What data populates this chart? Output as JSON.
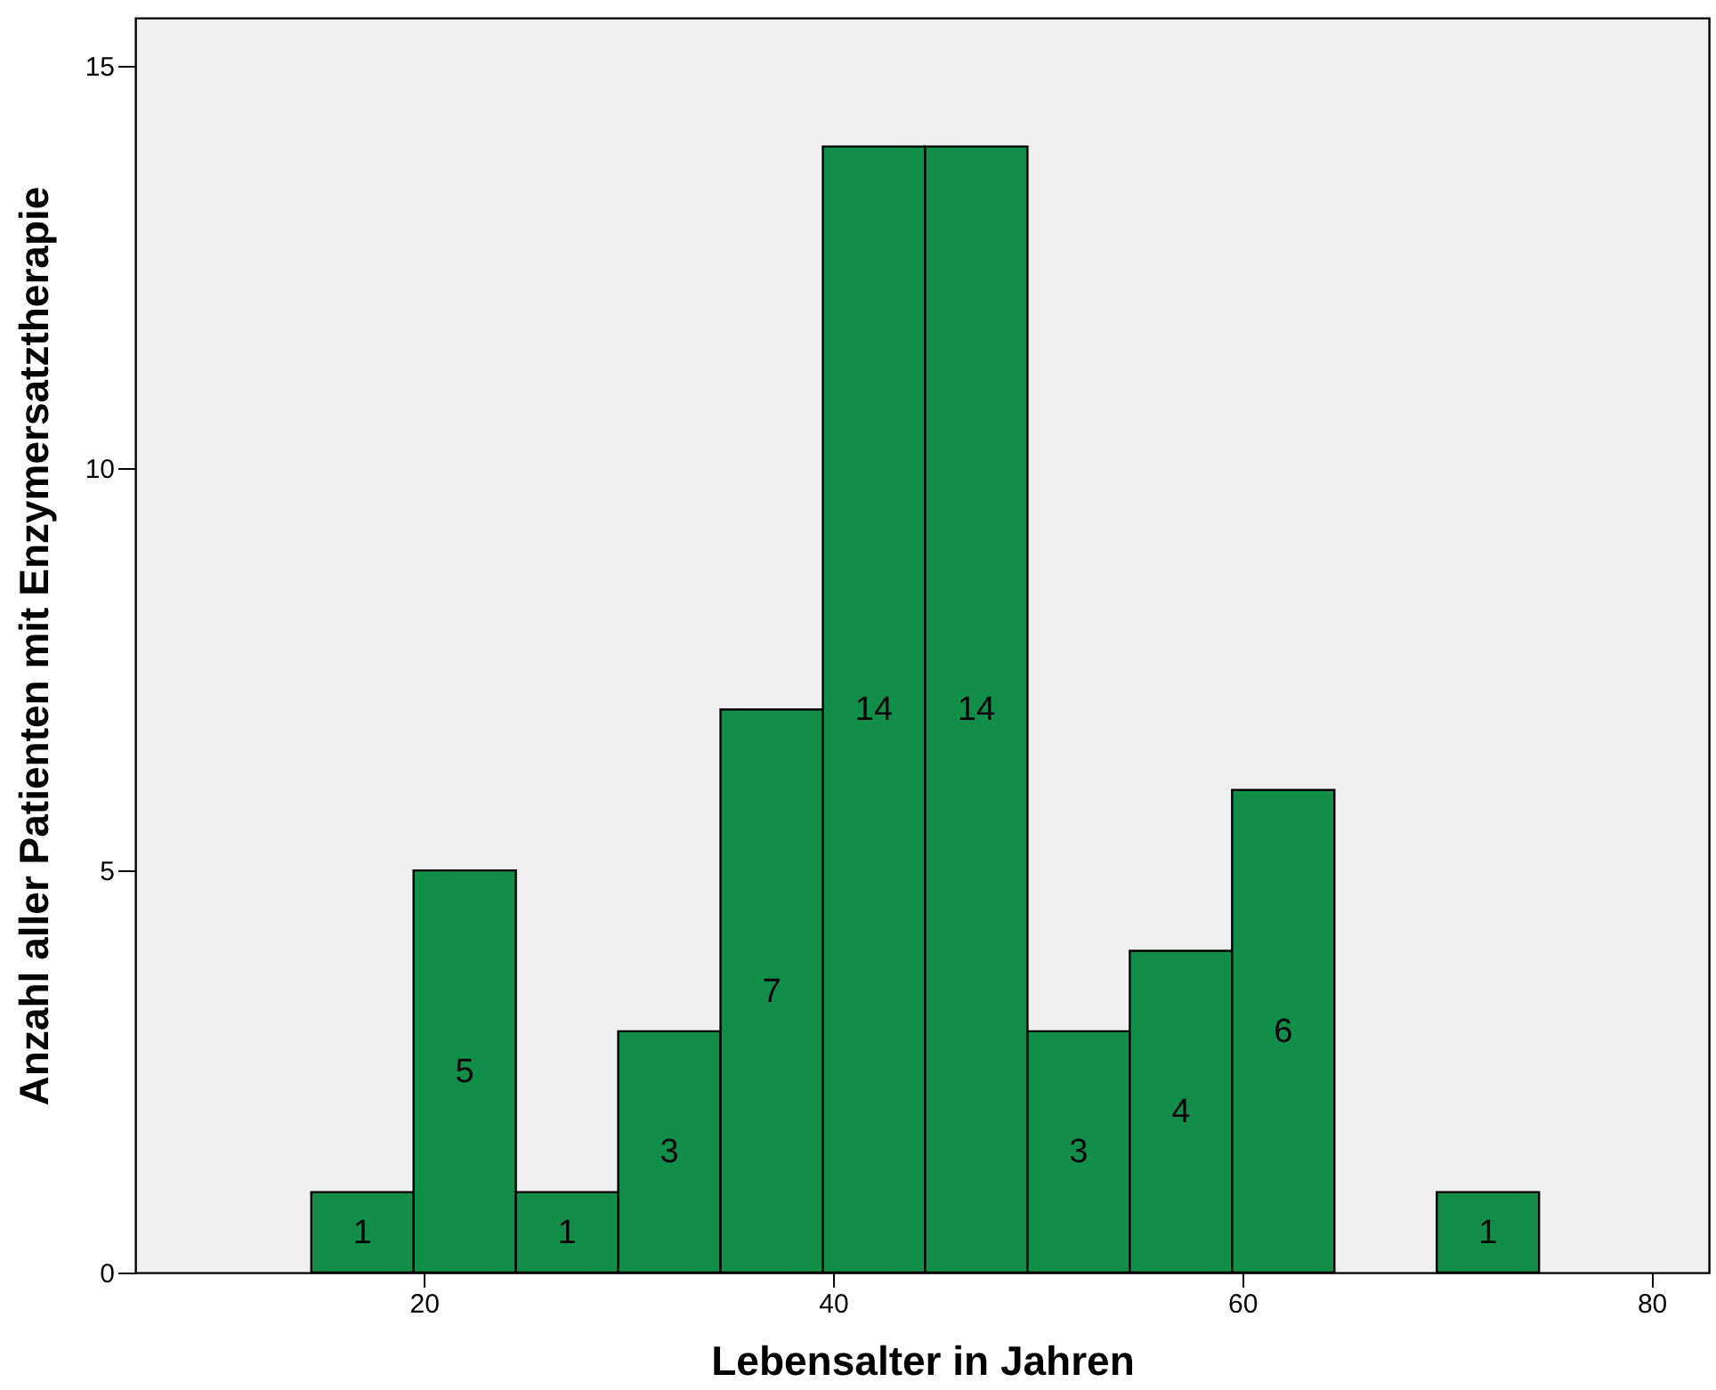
{
  "chart_data": {
    "type": "histogram",
    "xlabel": "Lebensalter in Jahren",
    "ylabel": "Anzahl aller Patienten mit Enzymersatztherapie",
    "bins": [
      14.5,
      19.5,
      24.5,
      29.5,
      34.5,
      39.5,
      44.5,
      49.5,
      54.5,
      59.5,
      64.5,
      69.5,
      74.5
    ],
    "values": [
      1,
      5,
      1,
      3,
      7,
      14,
      14,
      3,
      4,
      6,
      0,
      1
    ],
    "value_labels": [
      "1",
      "5",
      "1",
      "3",
      "7",
      "14",
      "14",
      "3",
      "4",
      "6",
      null,
      "1"
    ],
    "color": "#118e48",
    "xlim": [
      5.9,
      82.8
    ],
    "xticks": [
      20,
      40,
      60,
      80
    ],
    "ylim": [
      0,
      15.6
    ],
    "yticks": [
      0,
      5,
      10,
      15
    ],
    "grid": false
  }
}
